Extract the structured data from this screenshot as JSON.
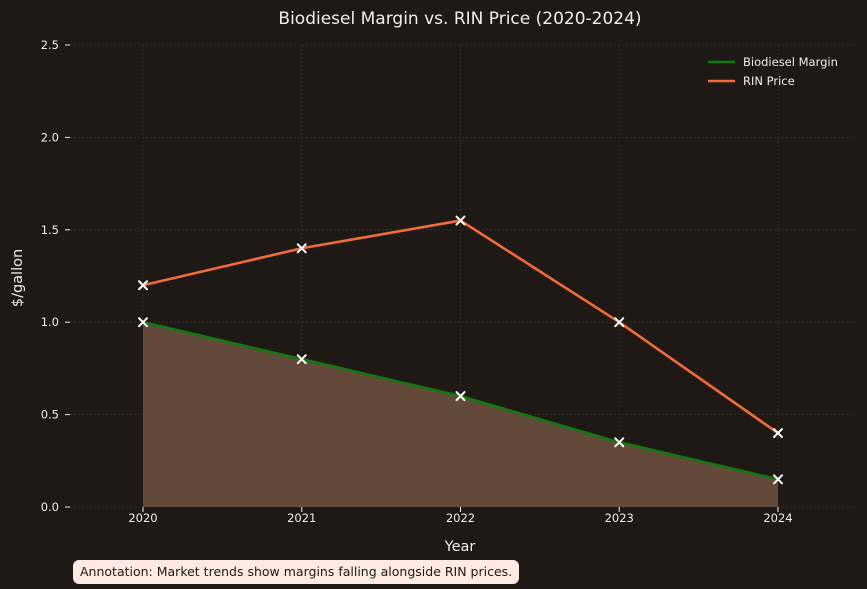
{
  "chart_data": {
    "type": "line",
    "title": "Biodiesel Margin vs. RIN Price (2020-2024)",
    "xlabel": "Year",
    "ylabel": "$/gallon",
    "categories": [
      "2020",
      "2021",
      "2022",
      "2023",
      "2024"
    ],
    "ylim": [
      0,
      2.5
    ],
    "yticks": [
      "0.0",
      "0.5",
      "1.0",
      "1.5",
      "2.0",
      "2.5"
    ],
    "grid": true,
    "legend_position": "top-right",
    "series": [
      {
        "name": "Biodiesel Margin",
        "values": [
          1.0,
          0.8,
          0.6,
          0.35,
          0.15
        ],
        "color": "#117a0f",
        "fill": "#63493a",
        "marker": "x"
      },
      {
        "name": "RIN Price",
        "values": [
          1.2,
          1.4,
          1.55,
          1.0,
          0.4
        ],
        "color": "#f26b38",
        "marker": "x"
      }
    ],
    "annotation": "Annotation: Market trends show margins falling alongside RIN prices."
  },
  "colors": {
    "background": "#1f1915",
    "text": "#eeeeee",
    "grid": "#3a302a",
    "marker": "#ffffff",
    "annotation_bg": "#fdebe3"
  }
}
